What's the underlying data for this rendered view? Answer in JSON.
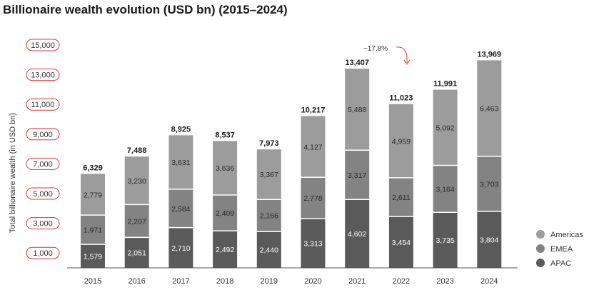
{
  "chart_data": {
    "type": "bar",
    "stacked": true,
    "title": "Billionaire wealth evolution (USD bn) (2015–2024)",
    "xlabel": "",
    "ylabel": "Total billionaire wealth (in USD bn)",
    "categories": [
      "2015",
      "2016",
      "2017",
      "2018",
      "2019",
      "2020",
      "2021",
      "2022",
      "2023",
      "2024"
    ],
    "series": [
      {
        "name": "APAC",
        "color": "#5a5a5a",
        "values": [
          1579,
          2051,
          2710,
          2492,
          2440,
          3313,
          4602,
          3454,
          3735,
          3804
        ]
      },
      {
        "name": "EMEA",
        "color": "#838383",
        "values": [
          1971,
          2207,
          2584,
          2409,
          2166,
          2778,
          3317,
          2611,
          3164,
          3703
        ]
      },
      {
        "name": "Americas",
        "color": "#9c9c9c",
        "values": [
          2779,
          3230,
          3631,
          3636,
          3367,
          4127,
          5488,
          4959,
          5092,
          6463
        ]
      }
    ],
    "totals": [
      "6,329",
      "7,488",
      "8,925",
      "8,537",
      "7,973",
      "10,217",
      "13,407",
      "11,023",
      "11,991",
      "13,969"
    ],
    "segment_labels": [
      [
        "1,579",
        "2,051",
        "2,710",
        "2,492",
        "2,440",
        "3,313",
        "4,602",
        "3,454",
        "3,735",
        "3,804"
      ],
      [
        "1,971",
        "2,207",
        "2,584",
        "2,409",
        "2,166",
        "2,778",
        "3,317",
        "2,611",
        "3,164",
        "3,703"
      ],
      [
        "2,779",
        "3,230",
        "3,631",
        "3,636",
        "3,367",
        "4,127",
        "5,488",
        "4,959",
        "5,092",
        "6,463"
      ]
    ],
    "yticks": [
      1000,
      3000,
      5000,
      7000,
      9000,
      11000,
      13000,
      15000
    ],
    "ytick_labels": [
      "1,000",
      "3,000",
      "5,000",
      "7,000",
      "9,000",
      "11,000",
      "13,000",
      "15,000"
    ],
    "ylim": [
      0,
      15500
    ],
    "legend_order": [
      "Americas",
      "EMEA",
      "APAC"
    ],
    "legend_position": "bottom-right",
    "annotation": {
      "text": "−17.8%",
      "from": "2021",
      "to": "2022"
    },
    "colors": {
      "tick_border": "#e0373a",
      "label_dark": "#ffffff",
      "label_light": "#2a2a2a",
      "separator": "#ffffff",
      "axis": "#555555"
    }
  }
}
